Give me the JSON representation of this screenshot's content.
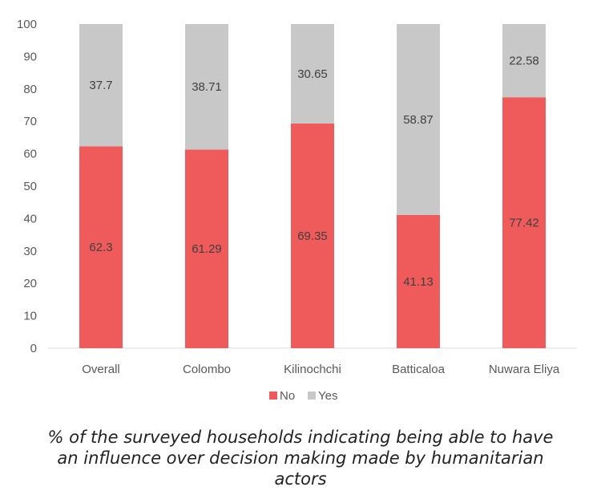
{
  "chart_data": {
    "type": "bar",
    "stacked": true,
    "categories": [
      "Overall",
      "Colombo",
      "Kilinochchi",
      "Batticaloa",
      "Nuwara Eliya"
    ],
    "series": [
      {
        "name": "No",
        "color": "#EF5A5A",
        "values": [
          62.3,
          61.29,
          69.35,
          41.13,
          77.42
        ]
      },
      {
        "name": "Yes",
        "color": "#C8C8C9",
        "values": [
          37.7,
          38.71,
          30.65,
          58.87,
          22.58
        ]
      }
    ],
    "ylim": [
      0,
      100
    ],
    "yticks": [
      0,
      10,
      20,
      30,
      40,
      50,
      60,
      70,
      80,
      90,
      100
    ],
    "grid": false,
    "legend": "bottom",
    "title": "",
    "xlabel": "",
    "ylabel": ""
  },
  "caption": {
    "line1": "% of the surveyed households indicating being  able to have",
    "line2": "an influence over decision making made by humanitarian",
    "line3": "actors"
  }
}
